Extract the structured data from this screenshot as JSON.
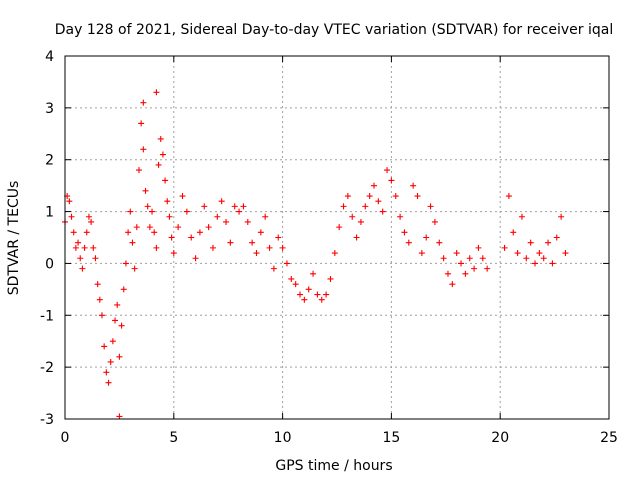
{
  "chart_data": {
    "type": "scatter",
    "title": "Day 128 of 2021, Sidereal Day-to-day VTEC variation (SDTVAR) for receiver iqal",
    "xlabel": "GPS time / hours",
    "ylabel": "SDTVAR / TECUs",
    "xlim": [
      0,
      25
    ],
    "ylim": [
      -3,
      4
    ],
    "xticks": [
      "0",
      "5",
      "10",
      "15",
      "20",
      "25"
    ],
    "yticks": [
      "-3",
      "-2",
      "-1",
      "0",
      "1",
      "2",
      "3",
      "4"
    ],
    "grid": true,
    "marker": "+",
    "color": "#ff0000",
    "series": [
      {
        "name": "SDTVAR",
        "points": [
          [
            0.0,
            0.8
          ],
          [
            0.1,
            1.3
          ],
          [
            0.2,
            1.2
          ],
          [
            0.3,
            0.9
          ],
          [
            0.4,
            0.6
          ],
          [
            0.5,
            0.3
          ],
          [
            0.6,
            0.4
          ],
          [
            0.7,
            0.1
          ],
          [
            0.8,
            -0.1
          ],
          [
            0.9,
            0.3
          ],
          [
            1.0,
            0.6
          ],
          [
            1.1,
            0.9
          ],
          [
            1.2,
            0.8
          ],
          [
            1.3,
            0.3
          ],
          [
            1.4,
            0.1
          ],
          [
            1.5,
            -0.4
          ],
          [
            1.6,
            -0.7
          ],
          [
            1.7,
            -1.0
          ],
          [
            1.8,
            -1.6
          ],
          [
            1.9,
            -2.1
          ],
          [
            2.0,
            -2.3
          ],
          [
            2.1,
            -1.9
          ],
          [
            2.2,
            -1.5
          ],
          [
            2.3,
            -1.1
          ],
          [
            2.4,
            -0.8
          ],
          [
            2.5,
            -1.8
          ],
          [
            2.6,
            -1.2
          ],
          [
            2.7,
            -0.5
          ],
          [
            2.8,
            0.0
          ],
          [
            2.9,
            0.6
          ],
          [
            3.0,
            1.0
          ],
          [
            3.1,
            0.4
          ],
          [
            3.2,
            -0.1
          ],
          [
            3.3,
            0.7
          ],
          [
            3.4,
            1.8
          ],
          [
            3.5,
            2.7
          ],
          [
            3.6,
            2.2
          ],
          [
            3.7,
            1.4
          ],
          [
            3.8,
            1.1
          ],
          [
            3.9,
            0.7
          ],
          [
            4.0,
            1.0
          ],
          [
            4.1,
            0.6
          ],
          [
            4.2,
            0.3
          ],
          [
            4.3,
            1.9
          ],
          [
            4.4,
            2.4
          ],
          [
            4.5,
            2.1
          ],
          [
            4.6,
            1.6
          ],
          [
            4.7,
            1.2
          ],
          [
            4.8,
            0.9
          ],
          [
            4.9,
            0.5
          ],
          [
            5.0,
            0.2
          ],
          [
            5.2,
            0.7
          ],
          [
            5.4,
            1.3
          ],
          [
            5.6,
            1.0
          ],
          [
            5.8,
            0.5
          ],
          [
            6.0,
            0.1
          ],
          [
            6.2,
            0.6
          ],
          [
            6.4,
            1.1
          ],
          [
            6.6,
            0.7
          ],
          [
            6.8,
            0.3
          ],
          [
            7.0,
            0.9
          ],
          [
            7.2,
            1.2
          ],
          [
            7.4,
            0.8
          ],
          [
            7.6,
            0.4
          ],
          [
            7.8,
            1.1
          ],
          [
            8.0,
            1.0
          ],
          [
            8.2,
            1.1
          ],
          [
            8.4,
            0.8
          ],
          [
            8.6,
            0.4
          ],
          [
            8.8,
            0.2
          ],
          [
            9.0,
            0.6
          ],
          [
            9.2,
            0.9
          ],
          [
            9.4,
            0.3
          ],
          [
            9.6,
            -0.1
          ],
          [
            9.8,
            0.5
          ],
          [
            10.0,
            0.3
          ],
          [
            10.2,
            0.0
          ],
          [
            10.4,
            -0.3
          ],
          [
            10.6,
            -0.4
          ],
          [
            10.8,
            -0.6
          ],
          [
            11.0,
            -0.7
          ],
          [
            11.2,
            -0.5
          ],
          [
            11.4,
            -0.2
          ],
          [
            11.6,
            -0.6
          ],
          [
            11.8,
            -0.7
          ],
          [
            12.0,
            -0.6
          ],
          [
            12.2,
            -0.3
          ],
          [
            12.4,
            0.2
          ],
          [
            12.6,
            0.7
          ],
          [
            12.8,
            1.1
          ],
          [
            13.0,
            1.3
          ],
          [
            13.2,
            0.9
          ],
          [
            13.4,
            0.5
          ],
          [
            13.6,
            0.8
          ],
          [
            13.8,
            1.1
          ],
          [
            14.0,
            1.3
          ],
          [
            14.2,
            1.5
          ],
          [
            14.4,
            1.2
          ],
          [
            14.6,
            1.0
          ],
          [
            14.8,
            1.8
          ],
          [
            15.0,
            1.6
          ],
          [
            15.2,
            1.3
          ],
          [
            15.4,
            0.9
          ],
          [
            15.6,
            0.6
          ],
          [
            15.8,
            0.4
          ],
          [
            16.0,
            1.5
          ],
          [
            16.2,
            1.3
          ],
          [
            16.4,
            0.2
          ],
          [
            16.6,
            0.5
          ],
          [
            16.8,
            1.1
          ],
          [
            17.0,
            0.8
          ],
          [
            17.2,
            0.4
          ],
          [
            17.4,
            0.1
          ],
          [
            17.6,
            -0.2
          ],
          [
            17.8,
            -0.4
          ],
          [
            18.0,
            0.2
          ],
          [
            18.2,
            0.0
          ],
          [
            18.4,
            -0.2
          ],
          [
            18.6,
            0.1
          ],
          [
            18.8,
            -0.1
          ],
          [
            19.0,
            0.3
          ],
          [
            19.2,
            0.1
          ],
          [
            19.4,
            -0.1
          ],
          [
            20.2,
            0.3
          ],
          [
            20.4,
            1.3
          ],
          [
            20.6,
            0.6
          ],
          [
            20.8,
            0.2
          ],
          [
            21.0,
            0.9
          ],
          [
            21.2,
            0.1
          ],
          [
            21.4,
            0.4
          ],
          [
            21.6,
            0.0
          ],
          [
            21.8,
            0.2
          ],
          [
            22.0,
            0.1
          ],
          [
            22.2,
            0.4
          ],
          [
            22.4,
            0.0
          ],
          [
            22.6,
            0.5
          ],
          [
            22.8,
            0.9
          ],
          [
            23.0,
            0.2
          ],
          [
            2.5,
            -2.95
          ],
          [
            4.2,
            3.3
          ],
          [
            3.6,
            3.1
          ]
        ]
      }
    ]
  }
}
